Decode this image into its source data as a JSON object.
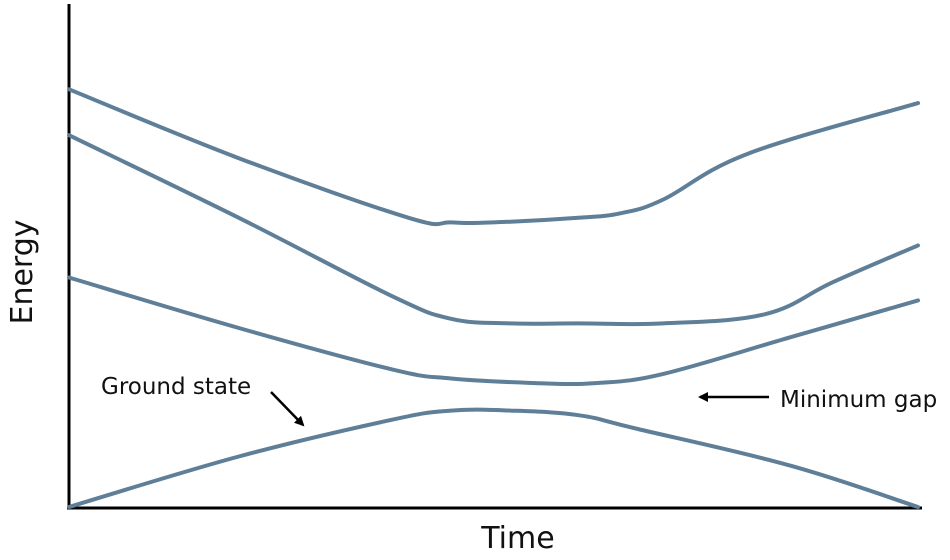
{
  "chart_data": {
    "type": "line",
    "xlabel": "Time",
    "ylabel": "Energy",
    "xlim": [
      0,
      1
    ],
    "ylim": [
      0,
      1
    ],
    "line_color": "#5f7f98",
    "series": [
      {
        "x": [
          0,
          0.2,
          0.4,
          0.45,
          0.5,
          0.6,
          0.65,
          0.7,
          0.8,
          1.0
        ],
        "y": [
          0.91,
          0.76,
          0.63,
          0.62,
          0.62,
          0.63,
          0.64,
          0.67,
          0.77,
          0.88
        ]
      },
      {
        "x": [
          0,
          0.2,
          0.38,
          0.45,
          0.52,
          0.6,
          0.7,
          0.82,
          0.9,
          1.0
        ],
        "y": [
          0.81,
          0.63,
          0.46,
          0.41,
          0.4,
          0.4,
          0.4,
          0.42,
          0.49,
          0.57
        ]
      },
      {
        "x": [
          0,
          0.2,
          0.38,
          0.45,
          0.55,
          0.62,
          0.7,
          0.85,
          1.0
        ],
        "y": [
          0.5,
          0.39,
          0.3,
          0.28,
          0.27,
          0.27,
          0.29,
          0.37,
          0.45
        ]
      },
      {
        "x": [
          0,
          0.2,
          0.38,
          0.45,
          0.52,
          0.6,
          0.67,
          0.85,
          1.0
        ],
        "y": [
          0.0,
          0.11,
          0.19,
          0.21,
          0.21,
          0.2,
          0.17,
          0.09,
          0.0
        ]
      }
    ],
    "annotations": [
      {
        "text": "Ground state",
        "arrow_from": [
          0.27,
          0.24
        ],
        "arrow_to": [
          0.28,
          0.16
        ]
      },
      {
        "text": "Minimum gap",
        "arrow_from": [
          0.83,
          0.22
        ],
        "arrow_to": [
          0.74,
          0.22
        ]
      }
    ]
  }
}
